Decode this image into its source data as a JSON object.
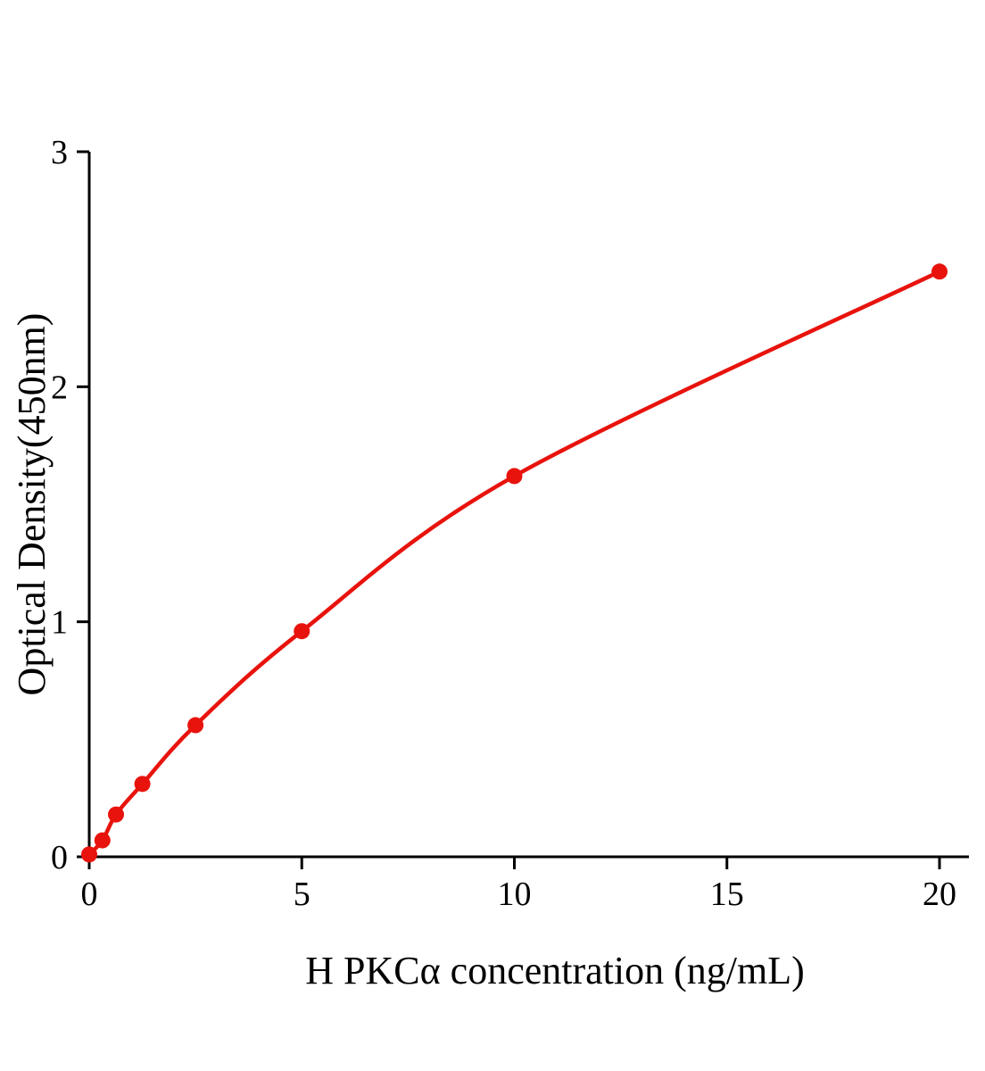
{
  "chart_data": {
    "type": "line",
    "title": "",
    "xlabel": "H PKCα concentration (ng/mL)",
    "ylabel": "Optical Density(450nm)",
    "x": [
      0,
      0.31,
      0.63,
      1.25,
      2.5,
      5,
      10,
      20
    ],
    "y": [
      0.01,
      0.07,
      0.18,
      0.31,
      0.56,
      0.96,
      1.62,
      2.49
    ],
    "xlim": [
      0,
      20
    ],
    "ylim": [
      0,
      3
    ],
    "xticks": [
      0,
      5,
      10,
      15,
      20
    ],
    "yticks": [
      0,
      1,
      2,
      3
    ],
    "grid": false,
    "legend": null,
    "line_color": "#e8130d",
    "marker_color": "#e8130d",
    "axis_color": "#000000"
  }
}
